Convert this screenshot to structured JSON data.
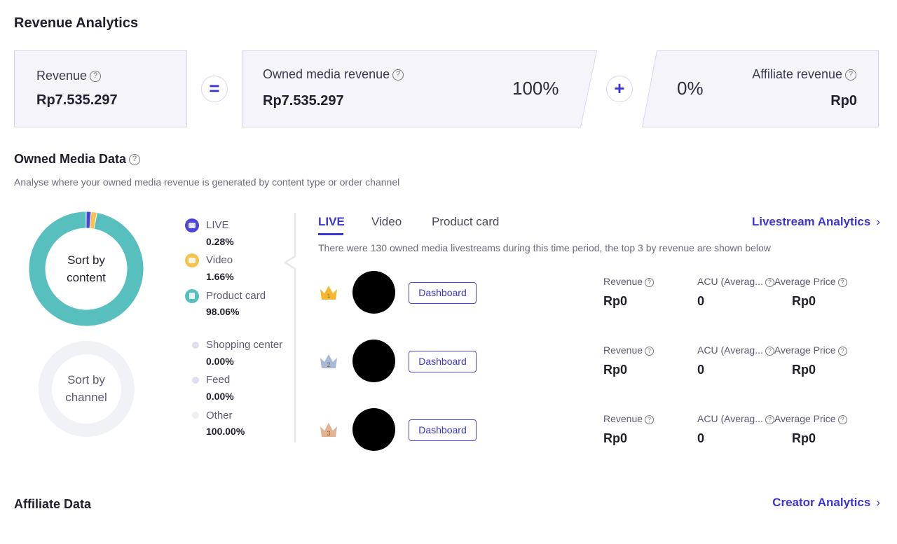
{
  "revenue_analytics": {
    "title": "Revenue Analytics",
    "revenue": {
      "label": "Revenue",
      "value": "Rp7.535.297"
    },
    "equals_symbol": "=",
    "plus_symbol": "+",
    "owned_media": {
      "label": "Owned media revenue",
      "value": "Rp7.535.297",
      "percent": "100%"
    },
    "affiliate": {
      "label": "Affiliate revenue",
      "value": "Rp0",
      "percent": "0%"
    }
  },
  "owned_media_data": {
    "title": "Owned Media Data",
    "subtitle": "Analyse where your owned media revenue is generated by content type or order channel",
    "content_donut": {
      "center_line1": "Sort by",
      "center_line2": "content",
      "segments": [
        {
          "label": "LIVE",
          "value": "0.28%",
          "percent": 0.28,
          "color": "#4b45d8",
          "icon": "live-camera-icon"
        },
        {
          "label": "Video",
          "value": "1.66%",
          "percent": 1.66,
          "color": "#f7c14d",
          "icon": "video-play-icon"
        },
        {
          "label": "Product card",
          "value": "98.06%",
          "percent": 98.06,
          "color": "#58bfbf",
          "icon": "shopping-bag-icon"
        }
      ]
    },
    "channel_donut": {
      "center_line1": "Sort by",
      "center_line2": "channel",
      "segments": [
        {
          "label": "Shopping center",
          "value": "0.00%"
        },
        {
          "label": "Feed",
          "value": "0.00%"
        },
        {
          "label": "Other",
          "value": "100.00%"
        }
      ]
    },
    "tabs": [
      "LIVE",
      "Video",
      "Product card"
    ],
    "active_tab": "LIVE",
    "analytics_link": "Livestream Analytics",
    "description": "There were 130 owned media livestreams during this time period, the top 3 by revenue are shown below",
    "rows": [
      {
        "rank": "1",
        "button": "Dashboard",
        "revenue_label": "Revenue",
        "revenue": "Rp0",
        "acu_label": "ACU (Averag...",
        "acu": "0",
        "price_label": "Average Price",
        "price": "Rp0"
      },
      {
        "rank": "2",
        "button": "Dashboard",
        "revenue_label": "Revenue",
        "revenue": "Rp0",
        "acu_label": "ACU (Averag...",
        "acu": "0",
        "price_label": "Average Price",
        "price": "Rp0"
      },
      {
        "rank": "3",
        "button": "Dashboard",
        "revenue_label": "Revenue",
        "revenue": "Rp0",
        "acu_label": "ACU (Averag...",
        "acu": "0",
        "price_label": "Average Price",
        "price": "Rp0"
      }
    ],
    "crown_colors": [
      "#f5b82e",
      "#a9b8d6",
      "#e2b393"
    ]
  },
  "affiliate_data": {
    "title": "Affiliate Data",
    "analytics_link": "Creator Analytics"
  },
  "colors": {
    "accent": "#3a35d4",
    "card_bg": "#f4f4fa",
    "card_border": "#d8d6f2"
  }
}
